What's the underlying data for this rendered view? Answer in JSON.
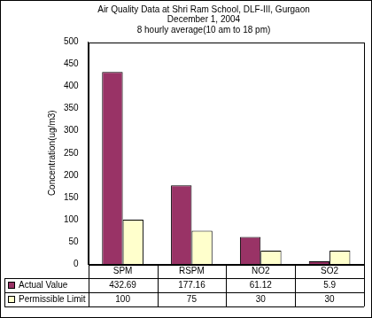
{
  "chart_data": {
    "type": "bar",
    "title": [
      "Air Quality Data at Shri Ram School, DLF-III, Gurgaon",
      "December 1, 2004",
      "8 hourly average(10 am to 18 pm)"
    ],
    "y_label": "Concentration(ug/m3)",
    "categories": [
      "SPM",
      "RSPM",
      "NO2",
      "SO2"
    ],
    "series": [
      {
        "name": "Actual Value",
        "color": "#993366",
        "values": [
          432.69,
          177.16,
          61.12,
          5.9
        ]
      },
      {
        "name": "Permissible Limit",
        "color": "#ffffcc",
        "values": [
          100,
          75,
          30,
          30
        ]
      }
    ],
    "ylim": [
      0,
      500
    ],
    "yticks": [
      0,
      50,
      100,
      150,
      200,
      250,
      300,
      350,
      400,
      450,
      500
    ],
    "grid": false,
    "tick_labels": "y"
  }
}
